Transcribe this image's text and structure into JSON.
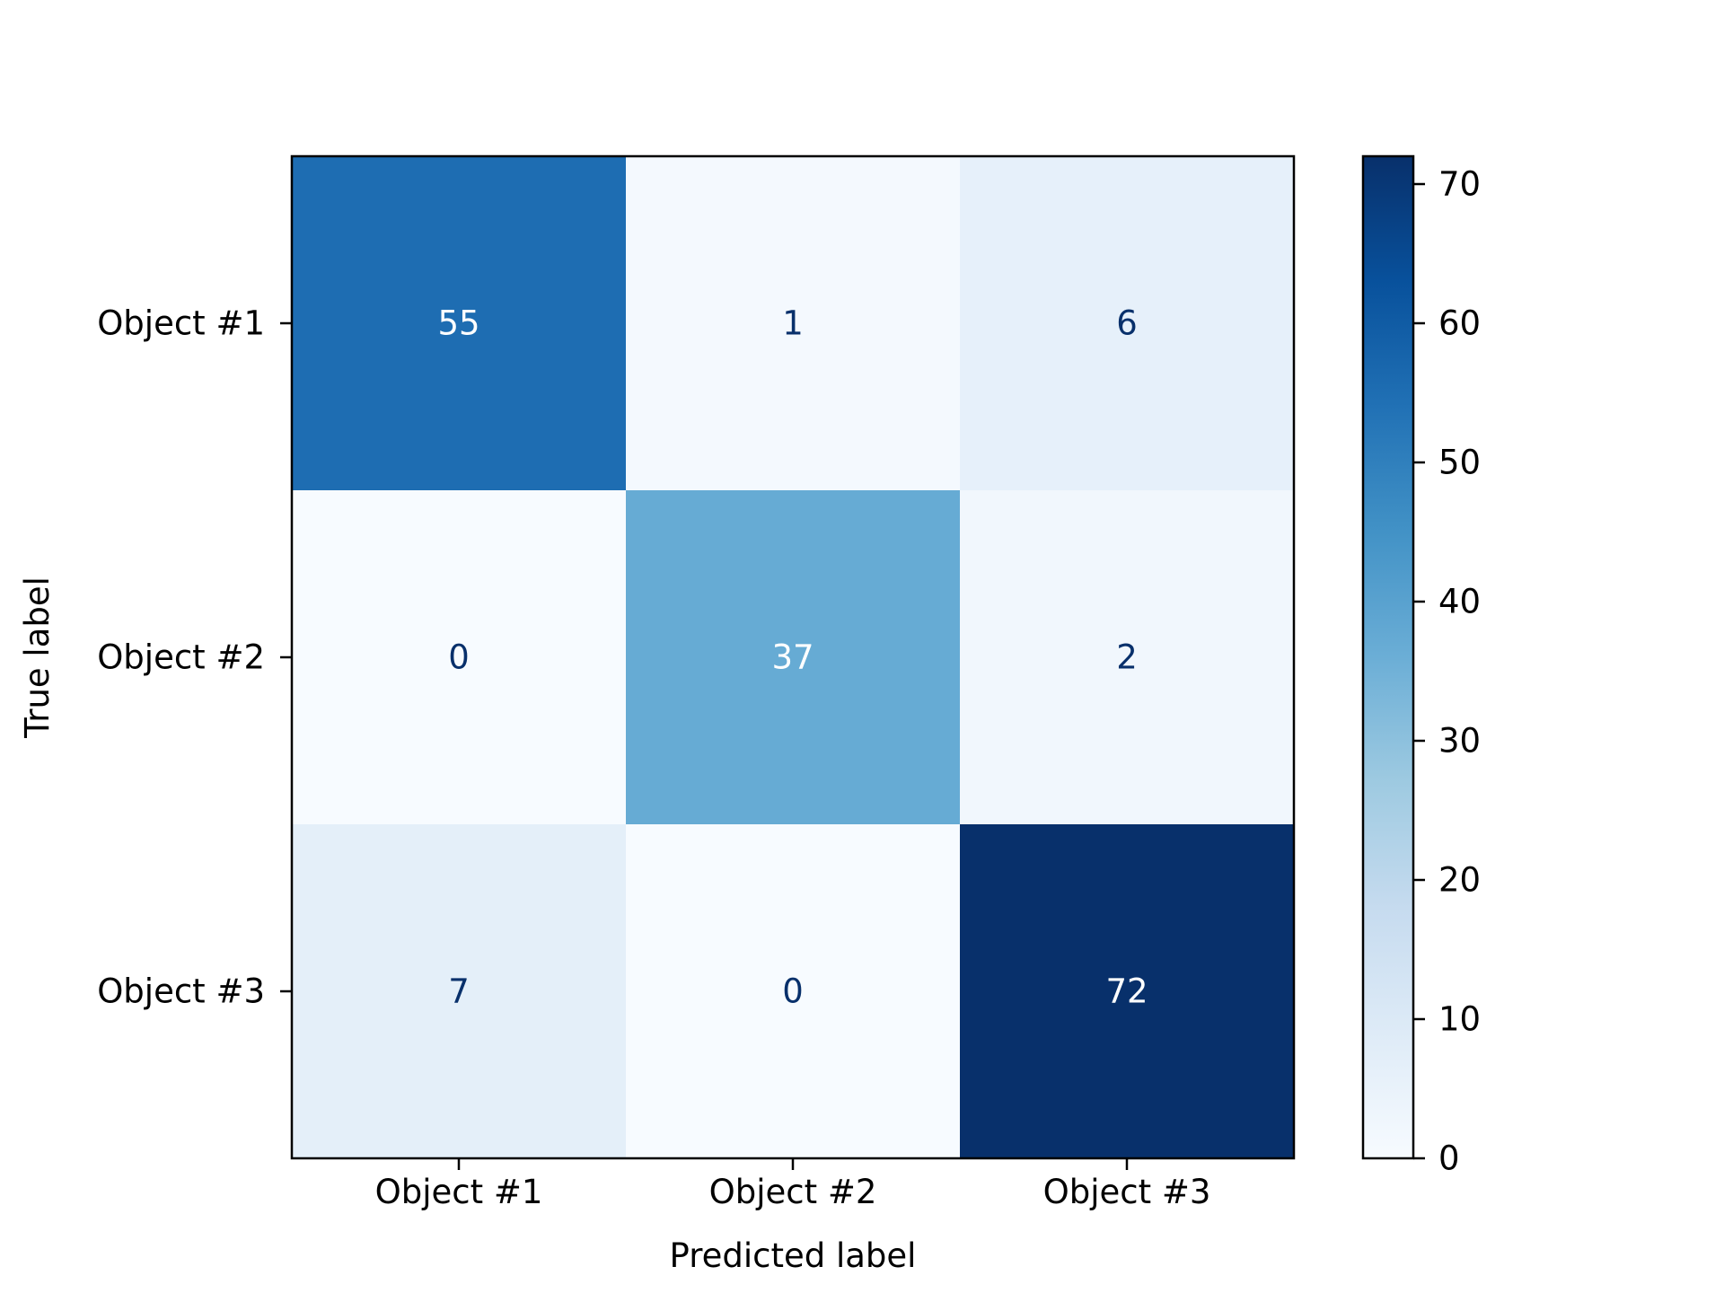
{
  "chart_data": {
    "type": "heatmap",
    "title": "",
    "xlabel": "Predicted label",
    "ylabel": "True label",
    "x_categories": [
      "Object #1",
      "Object #2",
      "Object #3"
    ],
    "y_categories": [
      "Object #1",
      "Object #2",
      "Object #3"
    ],
    "values": [
      [
        55,
        1,
        6
      ],
      [
        0,
        37,
        2
      ],
      [
        7,
        0,
        72
      ]
    ],
    "colormap": "Blues",
    "colorbar": {
      "min": 0,
      "max": 72,
      "ticks": [
        "0",
        "10",
        "20",
        "30",
        "40",
        "50",
        "60",
        "70"
      ]
    },
    "grid": false,
    "text_colors": {
      "dark_cell": "#ffffff",
      "light_cell": "#08306b"
    },
    "colorscale_stops": [
      "#f7fbff",
      "#deebf7",
      "#c6dbef",
      "#9ecae1",
      "#6baed6",
      "#4292c6",
      "#2171b5",
      "#08519c",
      "#08306b"
    ]
  }
}
